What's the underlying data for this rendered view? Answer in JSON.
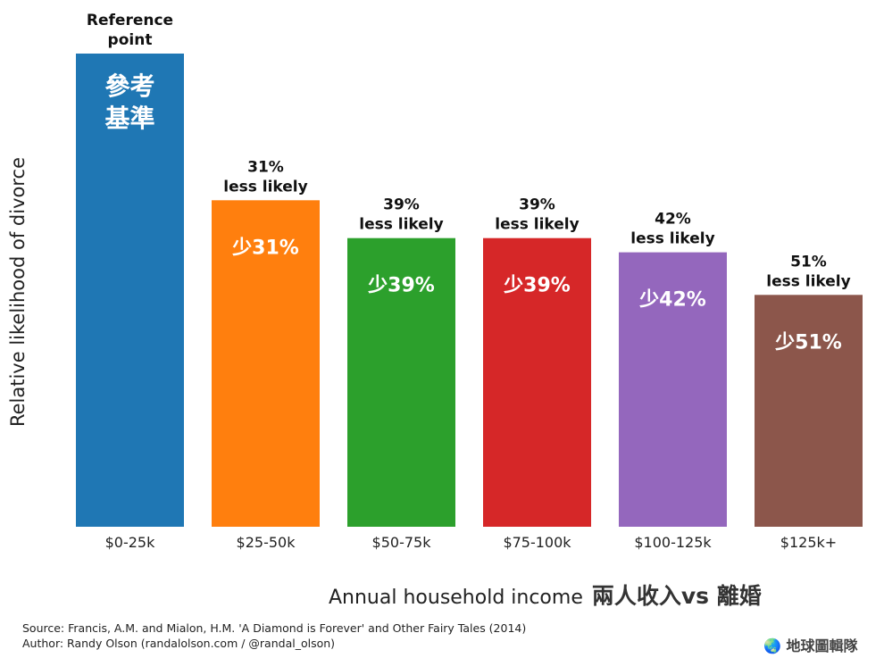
{
  "chart_data": {
    "type": "bar",
    "categories": [
      "$0-25k",
      "$25-50k",
      "$50-75k",
      "$75-100k",
      "$100-125k",
      "$125k+"
    ],
    "values": [
      100,
      69,
      61,
      61,
      58,
      49
    ],
    "ylim": [
      0,
      100
    ],
    "colors": [
      "#1f77b4",
      "#ff7f0e",
      "#2ca02c",
      "#d62728",
      "#9467bd",
      "#8c564b"
    ],
    "annotations": [
      [
        "Reference",
        "point"
      ],
      [
        "31%",
        "less likely"
      ],
      [
        "39%",
        "less likely"
      ],
      [
        "39%",
        "less likely"
      ],
      [
        "42%",
        "less likely"
      ],
      [
        "51%",
        "less likely"
      ]
    ],
    "inner_labels": [
      [
        "參考",
        "基準"
      ],
      [
        "少31%"
      ],
      [
        "少39%"
      ],
      [
        "少39%"
      ],
      [
        "少42%"
      ],
      [
        "少51%"
      ]
    ],
    "ylabel": "Relative likelihood of divorce",
    "xlabel": "Annual household income",
    "xlabel_cn": "兩人收入vs 離婚",
    "grid": false
  },
  "footer": {
    "source": "Source: Francis, A.M. and Mialon, H.M. 'A Diamond is Forever' and Other Fairy Tales (2014)",
    "author": "Author: Randy Olson (randalolson.com / @randal_olson)"
  },
  "watermark": "地球圖輯隊"
}
